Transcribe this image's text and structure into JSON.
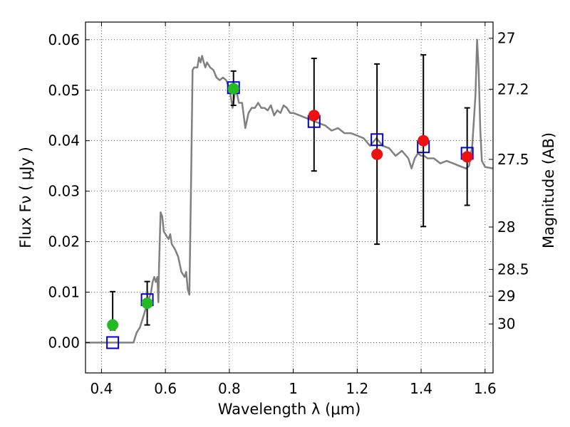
{
  "chart_data": {
    "type": "scatter",
    "xlabel": "Wavelength  λ (μm)",
    "ylabel": "Flux  Fν  ( μJy )",
    "y2label": "Magnitude (AB)",
    "xlim": [
      0.35,
      1.625
    ],
    "ylim": [
      -0.006,
      0.0635
    ],
    "grid": true,
    "legend": "none",
    "x_ticks": [
      {
        "value": 0.4,
        "label": "0.4"
      },
      {
        "value": 0.6,
        "label": "0.6"
      },
      {
        "value": 0.8,
        "label": "0.8"
      },
      {
        "value": 1.0,
        "label": "1"
      },
      {
        "value": 1.2,
        "label": "1.2"
      },
      {
        "value": 1.4,
        "label": "1.4"
      },
      {
        "value": 1.6,
        "label": "1.6"
      }
    ],
    "y_ticks": [
      {
        "value": 0.0,
        "label": "0.00"
      },
      {
        "value": 0.01,
        "label": "0.01"
      },
      {
        "value": 0.02,
        "label": "0.02"
      },
      {
        "value": 0.03,
        "label": "0.03"
      },
      {
        "value": 0.04,
        "label": "0.04"
      },
      {
        "value": 0.05,
        "label": "0.05"
      },
      {
        "value": 0.06,
        "label": "0.06"
      }
    ],
    "y2_ticks": [
      {
        "flux": 0.0603,
        "label": "27"
      },
      {
        "flux": 0.0502,
        "label": "27.2"
      },
      {
        "flux": 0.0363,
        "label": "27.5"
      },
      {
        "flux": 0.0229,
        "label": "28"
      },
      {
        "flux": 0.0145,
        "label": "28.5"
      },
      {
        "flux": 0.0092,
        "label": "29"
      },
      {
        "flux": 0.0037,
        "label": "30"
      }
    ],
    "series": [
      {
        "kind": "line",
        "color": "#808080",
        "x": [
          0.35,
          0.5,
          0.51,
          0.52,
          0.53,
          0.535,
          0.54,
          0.545,
          0.55,
          0.555,
          0.56,
          0.565,
          0.57,
          0.575,
          0.578,
          0.58,
          0.585,
          0.59,
          0.595,
          0.6,
          0.605,
          0.61,
          0.615,
          0.62,
          0.63,
          0.64,
          0.65,
          0.66,
          0.665,
          0.67,
          0.675,
          0.68,
          0.685,
          0.69,
          0.7,
          0.705,
          0.71,
          0.715,
          0.72,
          0.725,
          0.73,
          0.74,
          0.75,
          0.76,
          0.77,
          0.78,
          0.79,
          0.8,
          0.81,
          0.82,
          0.83,
          0.84,
          0.85,
          0.86,
          0.87,
          0.88,
          0.89,
          0.9,
          0.91,
          0.92,
          0.93,
          0.94,
          0.95,
          0.96,
          0.97,
          0.98,
          0.99,
          1.0,
          1.02,
          1.04,
          1.06,
          1.08,
          1.1,
          1.12,
          1.14,
          1.16,
          1.18,
          1.2,
          1.22,
          1.24,
          1.26,
          1.28,
          1.3,
          1.32,
          1.34,
          1.36,
          1.37,
          1.38,
          1.39,
          1.4,
          1.41,
          1.42,
          1.44,
          1.46,
          1.48,
          1.5,
          1.52,
          1.54,
          1.55,
          1.56,
          1.57,
          1.575,
          1.58,
          1.585,
          1.59,
          1.6,
          1.625
        ],
        "y": [
          0.0,
          0.0,
          0.002,
          0.003,
          0.005,
          0.006,
          0.007,
          0.008,
          0.009,
          0.01,
          0.012,
          0.013,
          0.012,
          0.013,
          0.008,
          0.015,
          0.0258,
          0.025,
          0.022,
          0.0215,
          0.021,
          0.0205,
          0.0215,
          0.0195,
          0.0185,
          0.017,
          0.014,
          0.013,
          0.014,
          0.0105,
          0.0095,
          0.03,
          0.054,
          0.0545,
          0.0545,
          0.0565,
          0.0555,
          0.0568,
          0.0555,
          0.0545,
          0.0555,
          0.0545,
          0.054,
          0.0525,
          0.052,
          0.0525,
          0.052,
          0.0505,
          0.0465,
          0.0505,
          0.0475,
          0.0475,
          0.0425,
          0.0455,
          0.0465,
          0.0465,
          0.0475,
          0.0465,
          0.0465,
          0.046,
          0.047,
          0.045,
          0.046,
          0.0455,
          0.047,
          0.0465,
          0.0455,
          0.0455,
          0.045,
          0.0445,
          0.044,
          0.0435,
          0.043,
          0.042,
          0.0425,
          0.0415,
          0.0415,
          0.041,
          0.0405,
          0.039,
          0.0405,
          0.039,
          0.0385,
          0.037,
          0.038,
          0.0365,
          0.0345,
          0.0365,
          0.0375,
          0.037,
          0.037,
          0.0365,
          0.0365,
          0.0355,
          0.036,
          0.0355,
          0.035,
          0.0345,
          0.035,
          0.039,
          0.049,
          0.06,
          0.054,
          0.042,
          0.036,
          0.0348,
          0.0345
        ]
      },
      {
        "kind": "points",
        "marker": "open-square",
        "color": "#0000cc",
        "x": [
          0.435,
          0.543,
          0.813,
          1.065,
          1.262,
          1.407,
          1.544
        ],
        "y": [
          0.0,
          0.0085,
          0.0505,
          0.0438,
          0.0402,
          0.0388,
          0.0375
        ]
      },
      {
        "kind": "points",
        "marker": "filled-circle",
        "color": "#22bb22",
        "x": [
          0.435,
          0.543,
          0.813
        ],
        "y": [
          0.0035,
          0.0078,
          0.0503
        ],
        "yerr_low": [
          0.0025,
          0.0035,
          0.047
        ],
        "yerr_high": [
          0.0101,
          0.0121,
          0.0538
        ]
      },
      {
        "kind": "points",
        "marker": "filled-circle",
        "color": "#ee1111",
        "x": [
          1.065,
          1.262,
          1.407,
          1.544
        ],
        "y": [
          0.045,
          0.0373,
          0.04,
          0.0368
        ],
        "yerr_low": [
          0.034,
          0.0195,
          0.023,
          0.0272
        ],
        "yerr_high": [
          0.0563,
          0.0552,
          0.057,
          0.0465
        ]
      }
    ]
  }
}
